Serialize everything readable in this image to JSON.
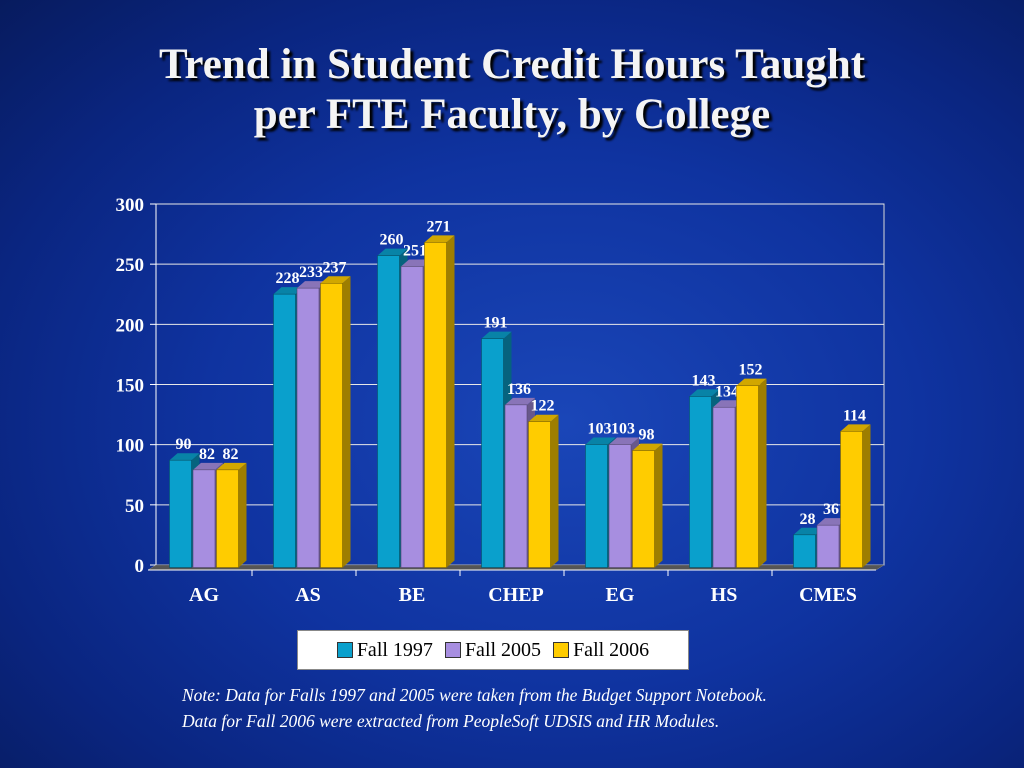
{
  "title_line1": "Trend in Student Credit Hours Taught",
  "title_line2": "per FTE Faculty, by College",
  "note_line1": "Note: Data for Falls 1997 and 2005 were taken from the Budget Support Notebook.",
  "note_line2": "Data for Fall 2006 were extracted from PeopleSoft UDSIS and HR Modules.",
  "chart_data": {
    "type": "bar",
    "categories": [
      "AG",
      "AS",
      "BE",
      "CHEP",
      "EG",
      "HS",
      "CMES"
    ],
    "series": [
      {
        "name": "Fall 1997",
        "color": "#0aa0cc",
        "values": [
          90,
          228,
          260,
          191,
          103,
          143,
          28
        ]
      },
      {
        "name": "Fall 2005",
        "color": "#a78ee0",
        "values": [
          82,
          233,
          251,
          136,
          103,
          134,
          36
        ]
      },
      {
        "name": "Fall 2006",
        "color": "#ffcc00",
        "values": [
          82,
          237,
          271,
          122,
          98,
          152,
          114
        ]
      }
    ],
    "ylim": [
      0,
      300
    ],
    "yticks": [
      0,
      50,
      100,
      150,
      200,
      250,
      300
    ],
    "grid": true,
    "legend": "bottom"
  }
}
